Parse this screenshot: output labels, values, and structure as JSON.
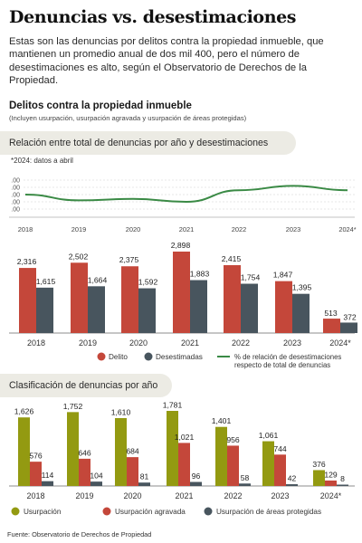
{
  "title": "Denuncias vs. desestimaciones",
  "intro": "Estas son las denuncias por delitos contra la propiedad inmueble, que mantienen un promedio anual de dos mil 400, pero el número de desestimaciones es alto, según el Observatorio de Derechos de la Propiedad.",
  "section": {
    "title": "Delitos contra la propiedad inmueble",
    "subtitle": "(Incluyen usurpación, usurpación agravada y usurpación de áreas protegidas)"
  },
  "colors": {
    "delito": "#c4473a",
    "desestimadas": "#48555e",
    "line": "#3a8a45",
    "usurpacion": "#939a11",
    "agravada": "#c4473a",
    "protegidas": "#48555e"
  },
  "chart_data": [
    {
      "type": "line",
      "title": "Relación entre total de denuncias por año y desestimaciones",
      "note": "*2024: datos a abril",
      "x": [
        "2018",
        "2019",
        "2020",
        "2021",
        "2022",
        "2023",
        "2024*"
      ],
      "series": [
        {
          "name": "% de relación de desestimaciones respecto de total de denuncias",
          "values": [
            0.7,
            0.66,
            0.67,
            0.65,
            0.73,
            0.76,
            0.73
          ]
        }
      ],
      "yticks": [
        ".00",
        ".00",
        ".00",
        ".00",
        ".00"
      ],
      "grid": true
    },
    {
      "type": "bar",
      "categories": [
        "2018",
        "2019",
        "2020",
        "2021",
        "2022",
        "2023",
        "2024*"
      ],
      "series": [
        {
          "name": "Delito",
          "values": [
            2316,
            2502,
            2375,
            2898,
            2415,
            1847,
            513
          ],
          "labels": [
            "2,316",
            "2,502",
            "2,375",
            "2,898",
            "2,415",
            "1,847",
            "513"
          ]
        },
        {
          "name": "Desestimadas",
          "values": [
            1615,
            1664,
            1592,
            1883,
            1754,
            1395,
            372
          ],
          "labels": [
            "1,615",
            "1,664",
            "1,592",
            "1,883",
            "1,754",
            "1,395",
            "372"
          ]
        }
      ],
      "legend": [
        "Delito",
        "Desestimadas",
        "% de relación de desestimaciones",
        "respecto de total de denuncias"
      ],
      "ylim": [
        0,
        2898
      ]
    },
    {
      "type": "bar",
      "title": "Clasificación de denuncias por año",
      "categories": [
        "2018",
        "2019",
        "2020",
        "2021",
        "2022",
        "2023",
        "2024*"
      ],
      "series": [
        {
          "name": "Usurpación",
          "values": [
            1626,
            1752,
            1610,
            1781,
            1401,
            1061,
            376
          ],
          "labels": [
            "1,626",
            "1,752",
            "1,610",
            "1,781",
            "1,401",
            "1,061",
            "376"
          ]
        },
        {
          "name": "Usurpación agravada",
          "values": [
            576,
            646,
            684,
            1021,
            956,
            744,
            129
          ],
          "labels": [
            "576",
            "646",
            "684",
            "1,021",
            "956",
            "744",
            "129"
          ]
        },
        {
          "name": "Usurpación de áreas protegidas",
          "values": [
            114,
            104,
            81,
            96,
            58,
            42,
            8
          ],
          "labels": [
            "114",
            "104",
            "81",
            "96",
            "58",
            "42",
            "8"
          ]
        }
      ],
      "ylim": [
        0,
        1781
      ]
    }
  ],
  "source": "Fuente: Observatorio de Derechos de Propiedad"
}
